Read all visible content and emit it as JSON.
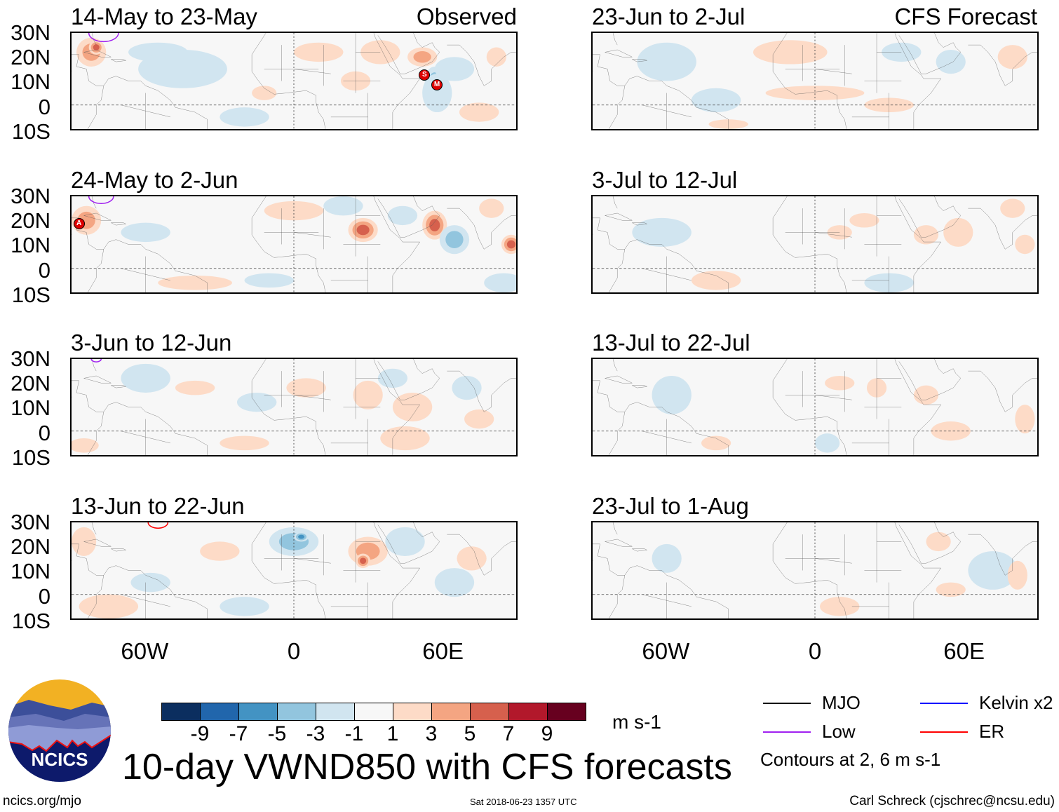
{
  "title": "10-day VWND850 with CFS forecasts",
  "units": "m s-1",
  "observed_label": "Observed",
  "forecast_label": "CFS Forecast",
  "lat_labels": [
    "30N",
    "20N",
    "10N",
    "0",
    "10S"
  ],
  "lon_labels": [
    "60W",
    "0",
    "60E"
  ],
  "colorbar": {
    "labels": [
      "-9",
      "-7",
      "-5",
      "-3",
      "-1",
      "1",
      "3",
      "5",
      "7",
      "9"
    ],
    "colors": [
      "#0b2e5f",
      "#2166ac",
      "#4393c3",
      "#92c5de",
      "#d1e5f0",
      "#f7f7f7",
      "#fddbc7",
      "#f4a582",
      "#d6604d",
      "#b2182b",
      "#67001f"
    ],
    "bounds": [
      -9,
      -7,
      -5,
      -3,
      -1,
      1,
      3,
      5,
      7,
      9
    ]
  },
  "legend": {
    "items": [
      {
        "label": "MJO",
        "color": "#000000"
      },
      {
        "label": "Kelvin x2",
        "color": "#0000ff"
      },
      {
        "label": "Low",
        "color": "#a020f0"
      },
      {
        "label": "ER",
        "color": "#ff0000"
      }
    ],
    "contours_note": "Contours at 2, 6 m s-1"
  },
  "footer": {
    "url": "ncics.org/mjo",
    "timestamp": "Sat 2018-06-23 1357 UTC",
    "author": "Carl Schreck (cjschrec@ncsu.edu)",
    "logo_text": "NCICS"
  },
  "panels": [
    {
      "title": "14-May to 23-May",
      "kind": "observed",
      "anoms": [
        [
          -82,
          22,
          6,
          6,
          4
        ],
        [
          -80,
          24,
          3,
          3,
          6
        ],
        [
          -55,
          22,
          12,
          4,
          -2
        ],
        [
          -45,
          15,
          18,
          8,
          -2
        ],
        [
          -20,
          -5,
          10,
          4,
          -2
        ],
        [
          -12,
          5,
          5,
          3,
          3
        ],
        [
          10,
          22,
          10,
          4,
          2
        ],
        [
          25,
          10,
          6,
          4,
          2
        ],
        [
          35,
          22,
          8,
          5,
          2
        ],
        [
          52,
          20,
          6,
          4,
          4
        ],
        [
          57,
          10,
          4,
          6,
          -4
        ],
        [
          58,
          5,
          6,
          8,
          -2
        ],
        [
          65,
          15,
          8,
          5,
          -2
        ],
        [
          75,
          -3,
          8,
          4,
          3
        ],
        [
          82,
          20,
          4,
          4,
          3
        ]
      ],
      "storms": [
        {
          "label": "S",
          "lon": 52,
          "lat": 13
        },
        {
          "label": "M",
          "lon": 57,
          "lat": 9
        }
      ],
      "contours": [
        {
          "type": "Low",
          "lon": -77,
          "lat": 30,
          "r": 6
        }
      ]
    },
    {
      "title": "24-May to 2-Jun",
      "kind": "observed",
      "anoms": [
        [
          -84,
          20,
          6,
          6,
          5
        ],
        [
          -40,
          -6,
          15,
          3,
          2
        ],
        [
          -60,
          15,
          10,
          4,
          -2
        ],
        [
          0,
          24,
          12,
          4,
          3
        ],
        [
          20,
          26,
          8,
          4,
          -2
        ],
        [
          28,
          16,
          6,
          5,
          7
        ],
        [
          44,
          22,
          6,
          4,
          -3
        ],
        [
          57,
          18,
          5,
          6,
          7
        ],
        [
          65,
          12,
          6,
          6,
          -4
        ],
        [
          80,
          25,
          5,
          4,
          3
        ],
        [
          88,
          10,
          4,
          4,
          6
        ],
        [
          85,
          -6,
          8,
          4,
          -3
        ],
        [
          -10,
          -5,
          10,
          3,
          -2
        ]
      ],
      "storms": [
        {
          "label": "A",
          "lon": -87,
          "lat": 19
        }
      ],
      "contours": [
        {
          "type": "Low",
          "lon": -78,
          "lat": 30,
          "r": 5
        }
      ]
    },
    {
      "title": "3-Jun to 12-Jun",
      "kind": "observed",
      "anoms": [
        [
          -60,
          22,
          10,
          6,
          -2
        ],
        [
          -40,
          18,
          8,
          3,
          2
        ],
        [
          -85,
          -6,
          6,
          3,
          3
        ],
        [
          -15,
          12,
          8,
          4,
          -2
        ],
        [
          5,
          18,
          8,
          4,
          2
        ],
        [
          30,
          15,
          6,
          6,
          2
        ],
        [
          40,
          22,
          6,
          4,
          -3
        ],
        [
          48,
          10,
          8,
          6,
          2
        ],
        [
          45,
          -3,
          10,
          5,
          3
        ],
        [
          70,
          18,
          6,
          5,
          -2
        ],
        [
          75,
          5,
          6,
          4,
          3
        ],
        [
          -20,
          -5,
          10,
          3,
          2
        ]
      ],
      "storms": [],
      "contours": [
        {
          "type": "Low",
          "lon": -80,
          "lat": 30,
          "r": 2
        }
      ]
    },
    {
      "title": "13-Jun to 22-Jun",
      "kind": "observed",
      "anoms": [
        [
          -85,
          22,
          5,
          6,
          3
        ],
        [
          -75,
          -5,
          12,
          5,
          3
        ],
        [
          -58,
          5,
          8,
          4,
          -2
        ],
        [
          0,
          22,
          10,
          6,
          -4
        ],
        [
          3,
          24,
          3,
          2,
          -7
        ],
        [
          30,
          18,
          8,
          6,
          5
        ],
        [
          28,
          14,
          3,
          3,
          7
        ],
        [
          45,
          22,
          8,
          6,
          -3
        ],
        [
          65,
          5,
          8,
          6,
          -2
        ],
        [
          72,
          15,
          6,
          5,
          3
        ],
        [
          -30,
          18,
          8,
          4,
          2
        ],
        [
          -20,
          -5,
          10,
          4,
          -2
        ]
      ],
      "storms": [],
      "contours": [
        {
          "type": "ER",
          "lon": -55,
          "lat": 30,
          "r": 4
        }
      ]
    },
    {
      "title": "23-Jun to 2-Jul",
      "kind": "forecast",
      "anoms": [
        [
          -60,
          18,
          12,
          8,
          -2
        ],
        [
          -40,
          2,
          10,
          5,
          -2
        ],
        [
          -10,
          22,
          15,
          5,
          2
        ],
        [
          0,
          5,
          20,
          3,
          2
        ],
        [
          30,
          0,
          10,
          3,
          2
        ],
        [
          35,
          22,
          8,
          4,
          -2
        ],
        [
          55,
          18,
          6,
          5,
          -2
        ],
        [
          80,
          20,
          6,
          5,
          3
        ],
        [
          -35,
          -8,
          8,
          2,
          2
        ]
      ],
      "storms": [],
      "contours": []
    },
    {
      "title": "3-Jul to 12-Jul",
      "kind": "forecast",
      "anoms": [
        [
          -62,
          15,
          12,
          6,
          -2
        ],
        [
          -40,
          -5,
          10,
          4,
          2
        ],
        [
          10,
          15,
          5,
          3,
          2
        ],
        [
          20,
          20,
          6,
          3,
          2
        ],
        [
          45,
          14,
          5,
          4,
          2
        ],
        [
          58,
          15,
          6,
          6,
          2
        ],
        [
          80,
          25,
          5,
          4,
          2
        ],
        [
          85,
          10,
          4,
          4,
          2
        ],
        [
          30,
          -6,
          10,
          4,
          -2
        ]
      ],
      "storms": [],
      "contours": []
    },
    {
      "title": "13-Jul to 22-Jul",
      "kind": "forecast",
      "anoms": [
        [
          -58,
          15,
          8,
          8,
          -2
        ],
        [
          -40,
          -5,
          6,
          3,
          2
        ],
        [
          10,
          20,
          6,
          3,
          2
        ],
        [
          25,
          18,
          4,
          4,
          2
        ],
        [
          45,
          15,
          5,
          4,
          2
        ],
        [
          55,
          0,
          8,
          4,
          2
        ],
        [
          5,
          -5,
          5,
          4,
          -3
        ],
        [
          85,
          5,
          4,
          6,
          2
        ]
      ],
      "storms": [],
      "contours": []
    },
    {
      "title": "23-Jul to 1-Aug",
      "kind": "forecast",
      "anoms": [
        [
          -60,
          15,
          6,
          6,
          -2
        ],
        [
          10,
          -5,
          8,
          4,
          2
        ],
        [
          50,
          22,
          5,
          4,
          2
        ],
        [
          55,
          2,
          6,
          3,
          2
        ],
        [
          72,
          10,
          10,
          8,
          -2
        ],
        [
          82,
          8,
          4,
          6,
          2
        ]
      ],
      "storms": [],
      "contours": []
    }
  ]
}
